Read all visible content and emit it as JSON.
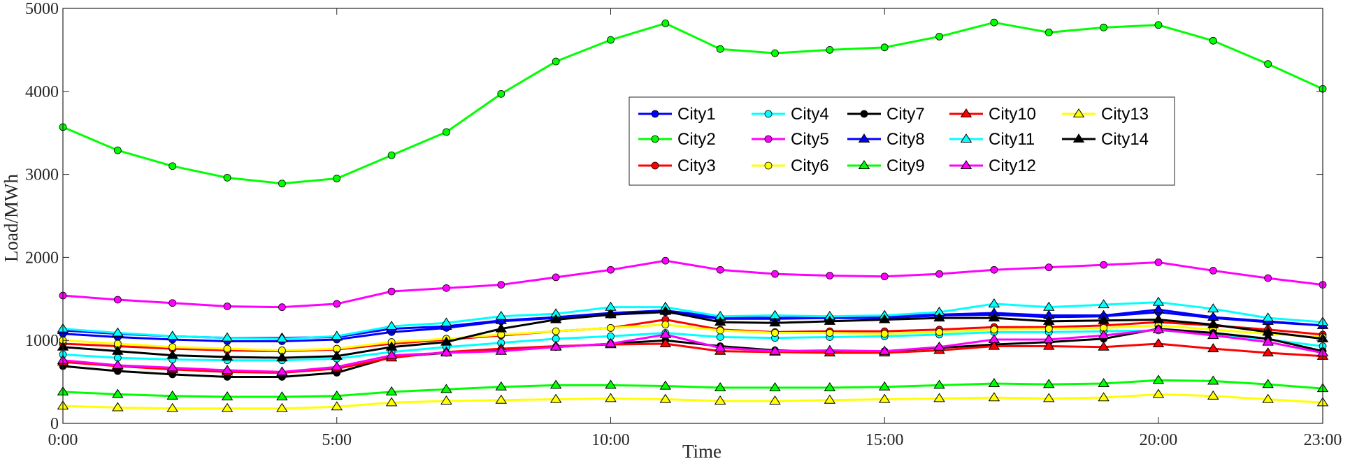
{
  "chart_data": {
    "type": "line",
    "xlabel": "Time",
    "ylabel": "Load/MWh",
    "xlim": [
      0,
      23
    ],
    "ylim": [
      0,
      5000
    ],
    "x_ticks": [
      {
        "x": 0,
        "label": "0:00"
      },
      {
        "x": 5,
        "label": "5:00"
      },
      {
        "x": 10,
        "label": "10:00"
      },
      {
        "x": 15,
        "label": "15:00"
      },
      {
        "x": 20,
        "label": "20:00"
      },
      {
        "x": 23,
        "label": "23:00"
      }
    ],
    "y_ticks": [
      {
        "y": 0,
        "label": "0"
      },
      {
        "y": 1000,
        "label": "1000"
      },
      {
        "y": 2000,
        "label": "2000"
      },
      {
        "y": 3000,
        "label": "3000"
      },
      {
        "y": 4000,
        "label": "4000"
      },
      {
        "y": 5000,
        "label": "5000"
      }
    ],
    "grid": false,
    "legend_position": "upper-center, 5 columns",
    "x": [
      0,
      1,
      2,
      3,
      4,
      5,
      6,
      7,
      8,
      9,
      10,
      11,
      12,
      13,
      14,
      15,
      16,
      17,
      18,
      19,
      20,
      21,
      22,
      23
    ],
    "series": [
      {
        "name": "City1",
        "color": "#0000ff",
        "marker": "circle",
        "values": [
          1080,
          1040,
          1010,
          990,
          990,
          1010,
          1100,
          1150,
          1230,
          1270,
          1310,
          1340,
          1260,
          1260,
          1270,
          1270,
          1300,
          1310,
          1280,
          1290,
          1340,
          1270,
          1220,
          1180
        ]
      },
      {
        "name": "City2",
        "color": "#00ff00",
        "marker": "circle",
        "values": [
          3570,
          3290,
          3100,
          2960,
          2890,
          2950,
          3230,
          3510,
          3970,
          4360,
          4620,
          4820,
          4510,
          4460,
          4500,
          4530,
          4660,
          4830,
          4710,
          4770,
          4800,
          4610,
          4330,
          4030
        ]
      },
      {
        "name": "City3",
        "color": "#ff0000",
        "marker": "circle",
        "values": [
          960,
          930,
          900,
          880,
          870,
          890,
          960,
          1010,
          1060,
          1110,
          1150,
          1250,
          1130,
          1100,
          1110,
          1110,
          1130,
          1160,
          1160,
          1180,
          1220,
          1180,
          1130,
          1070
        ]
      },
      {
        "name": "City4",
        "color": "#00ffff",
        "marker": "circle",
        "values": [
          830,
          790,
          770,
          760,
          760,
          780,
          860,
          920,
          970,
          1020,
          1050,
          1090,
          1040,
          1030,
          1040,
          1050,
          1070,
          1100,
          1100,
          1110,
          1120,
          1080,
          1010,
          930
        ]
      },
      {
        "name": "City5",
        "color": "#ff00ff",
        "marker": "circle",
        "values": [
          1540,
          1490,
          1450,
          1410,
          1400,
          1440,
          1590,
          1630,
          1670,
          1760,
          1850,
          1960,
          1850,
          1800,
          1780,
          1770,
          1800,
          1850,
          1880,
          1910,
          1940,
          1840,
          1750,
          1670
        ]
      },
      {
        "name": "City6",
        "color": "#ffff00",
        "marker": "circle",
        "values": [
          1000,
          960,
          920,
          900,
          880,
          900,
          980,
          1020,
          1070,
          1110,
          1150,
          1190,
          1120,
          1090,
          1090,
          1080,
          1100,
          1130,
          1140,
          1150,
          1180,
          1130,
          1080,
          1040
        ]
      },
      {
        "name": "City7",
        "color": "#000000",
        "marker": "circle",
        "values": [
          690,
          630,
          590,
          560,
          560,
          610,
          800,
          850,
          890,
          920,
          960,
          1000,
          930,
          880,
          860,
          870,
          910,
          950,
          980,
          1020,
          1140,
          1090,
          1020,
          870
        ]
      },
      {
        "name": "City8",
        "color": "#0000ff",
        "marker": "triangle",
        "values": [
          1120,
          1080,
          1050,
          1030,
          1030,
          1040,
          1140,
          1170,
          1240,
          1280,
          1330,
          1360,
          1280,
          1270,
          1280,
          1290,
          1310,
          1330,
          1300,
          1300,
          1370,
          1280,
          1230,
          1180
        ]
      },
      {
        "name": "City9",
        "color": "#00ff00",
        "marker": "triangle",
        "values": [
          380,
          350,
          330,
          320,
          320,
          330,
          380,
          410,
          440,
          460,
          460,
          450,
          430,
          430,
          430,
          440,
          460,
          480,
          470,
          480,
          520,
          510,
          470,
          420
        ]
      },
      {
        "name": "City10",
        "color": "#ff0000",
        "marker": "triangle",
        "values": [
          740,
          690,
          650,
          620,
          610,
          660,
          790,
          860,
          900,
          930,
          950,
          960,
          870,
          860,
          850,
          850,
          880,
          930,
          930,
          920,
          960,
          900,
          850,
          810
        ]
      },
      {
        "name": "City11",
        "color": "#00ffff",
        "marker": "triangle",
        "values": [
          1140,
          1090,
          1050,
          1030,
          1020,
          1050,
          1170,
          1210,
          1290,
          1320,
          1400,
          1400,
          1290,
          1300,
          1290,
          1300,
          1340,
          1440,
          1400,
          1430,
          1460,
          1380,
          1270,
          1220
        ]
      },
      {
        "name": "City12",
        "color": "#ff00ff",
        "marker": "triangle",
        "values": [
          760,
          700,
          670,
          640,
          620,
          680,
          820,
          850,
          870,
          920,
          960,
          1070,
          910,
          870,
          880,
          870,
          920,
          1010,
          1010,
          1060,
          1130,
          1060,
          980,
          850
        ]
      },
      {
        "name": "City13",
        "color": "#ffff00",
        "marker": "triangle",
        "values": [
          210,
          190,
          180,
          180,
          180,
          200,
          250,
          270,
          280,
          290,
          300,
          290,
          270,
          270,
          280,
          290,
          300,
          310,
          300,
          310,
          350,
          330,
          290,
          250
        ]
      },
      {
        "name": "City14",
        "color": "#000000",
        "marker": "triangle",
        "values": [
          920,
          870,
          820,
          800,
          790,
          810,
          920,
          980,
          1140,
          1250,
          1310,
          1350,
          1220,
          1210,
          1230,
          1250,
          1270,
          1270,
          1230,
          1240,
          1250,
          1190,
          1100,
          1020
        ]
      }
    ]
  }
}
